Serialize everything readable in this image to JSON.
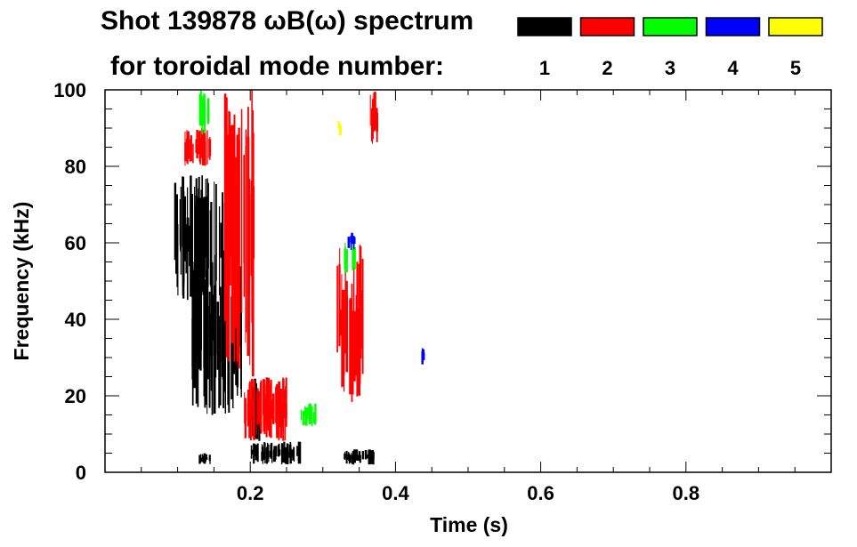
{
  "chart_data": {
    "type": "heatmap",
    "title": "Shot 139878 ωB(ω) spectrum",
    "subtitle": "for toroidal mode number:",
    "xlabel": "Time (s)",
    "ylabel": "Frequency (kHz)",
    "xlim": [
      0.0,
      1.0
    ],
    "ylim": [
      0,
      100
    ],
    "xticks": [
      0.2,
      0.4,
      0.6,
      0.8
    ],
    "xtick_labels": [
      "0.2",
      "0.4",
      "0.6",
      "0.8"
    ],
    "yticks": [
      0,
      20,
      40,
      60,
      80,
      100
    ],
    "ytick_labels": [
      "0",
      "20",
      "40",
      "60",
      "80",
      "100"
    ],
    "grid": false,
    "legend_position": "top-right",
    "series": [
      {
        "name": "1",
        "color": "#000000",
        "regions": [
          {
            "t0": 0.095,
            "t1": 0.165,
            "f0": 45,
            "f1": 78
          },
          {
            "t0": 0.12,
            "t1": 0.19,
            "f0": 15,
            "f1": 60
          },
          {
            "t0": 0.2,
            "t1": 0.27,
            "f0": 2,
            "f1": 8
          },
          {
            "t0": 0.2,
            "t1": 0.215,
            "f0": 8,
            "f1": 25
          },
          {
            "t0": 0.33,
            "t1": 0.37,
            "f0": 2,
            "f1": 6
          },
          {
            "t0": 0.13,
            "t1": 0.145,
            "f0": 2,
            "f1": 5
          }
        ]
      },
      {
        "name": "2",
        "color": "#ff0000",
        "regions": [
          {
            "t0": 0.11,
            "t1": 0.145,
            "f0": 80,
            "f1": 90
          },
          {
            "t0": 0.165,
            "t1": 0.205,
            "f0": 25,
            "f1": 100
          },
          {
            "t0": 0.19,
            "t1": 0.25,
            "f0": 8,
            "f1": 25
          },
          {
            "t0": 0.32,
            "t1": 0.355,
            "f0": 18,
            "f1": 60
          },
          {
            "t0": 0.365,
            "t1": 0.375,
            "f0": 85,
            "f1": 100
          }
        ]
      },
      {
        "name": "3",
        "color": "#00ff00",
        "regions": [
          {
            "t0": 0.13,
            "t1": 0.145,
            "f0": 88,
            "f1": 100
          },
          {
            "t0": 0.33,
            "t1": 0.345,
            "f0": 52,
            "f1": 60
          },
          {
            "t0": 0.27,
            "t1": 0.29,
            "f0": 12,
            "f1": 18
          }
        ]
      },
      {
        "name": "4",
        "color": "#0000ff",
        "regions": [
          {
            "t0": 0.335,
            "t1": 0.345,
            "f0": 58,
            "f1": 63
          },
          {
            "t0": 0.435,
            "t1": 0.44,
            "f0": 28,
            "f1": 33
          }
        ]
      },
      {
        "name": "5",
        "color": "#ffff00",
        "regions": [
          {
            "t0": 0.32,
            "t1": 0.325,
            "f0": 88,
            "f1": 92
          }
        ]
      }
    ]
  }
}
